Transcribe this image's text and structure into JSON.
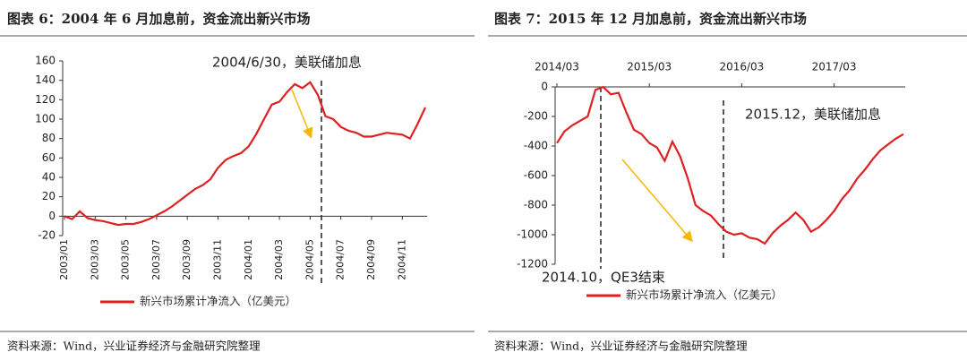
{
  "chart_data": [
    {
      "type": "line",
      "title": "图表 6：2004 年 6 月加息前，资金流出新兴市场",
      "annotation": "2004/6/30，美联储加息",
      "categories": [
        "2003/01",
        null,
        null,
        null,
        "2003/03",
        null,
        null,
        null,
        "2003/05",
        null,
        null,
        null,
        "2003/07",
        null,
        null,
        null,
        "2003/09",
        null,
        null,
        null,
        "2003/11",
        null,
        null,
        null,
        "2004/01",
        null,
        null,
        null,
        "2004/03",
        null,
        null,
        null,
        "2004/05",
        null,
        null,
        null,
        "2004/07",
        null,
        null,
        null,
        "2004/09",
        null,
        null,
        null,
        "2004/11",
        null,
        null,
        null
      ],
      "series": [
        {
          "name": "新兴市场累计净流入（亿美元）",
          "color": "#e02020",
          "values": [
            0,
            -3,
            5,
            -2,
            -4,
            -5,
            -7,
            -9,
            -8,
            -8,
            -6,
            -3,
            1,
            5,
            10,
            16,
            22,
            28,
            32,
            38,
            50,
            58,
            62,
            65,
            72,
            85,
            100,
            115,
            118,
            128,
            136,
            132,
            138,
            125,
            103,
            100,
            92,
            88,
            86,
            82,
            82,
            84,
            86,
            85,
            84,
            80,
            95,
            112
          ]
        }
      ],
      "ylim": [
        -20,
        160
      ],
      "yticks": [
        -20,
        0,
        20,
        40,
        60,
        80,
        100,
        120,
        140,
        160
      ],
      "xaxis": "bottom",
      "source": "资料来源：Wind，兴业证券经济与金融研究院整理"
    },
    {
      "type": "line",
      "title": "图表 7：2015 年 12 月加息前，资金流出新兴市场",
      "annotations": [
        "2015.12，美联储加息",
        "2014.10，QE3结束"
      ],
      "categories": [
        "2014/03",
        null,
        null,
        null,
        null,
        null,
        null,
        null,
        null,
        null,
        null,
        null,
        "2015/03",
        null,
        null,
        null,
        null,
        null,
        null,
        null,
        null,
        null,
        null,
        null,
        "2016/03",
        null,
        null,
        null,
        null,
        null,
        null,
        null,
        null,
        null,
        null,
        null,
        "2017/03",
        null,
        null,
        null,
        null,
        null,
        null,
        null,
        null,
        null
      ],
      "series": [
        {
          "name": "新兴市场累计净流入（亿美元）",
          "color": "#e02020",
          "values": [
            -380,
            -300,
            -260,
            -230,
            -200,
            -20,
            0,
            -50,
            -40,
            -170,
            -290,
            -320,
            -380,
            -410,
            -500,
            -370,
            -470,
            -620,
            -800,
            -840,
            -870,
            -930,
            -980,
            -1000,
            -990,
            -1020,
            -1030,
            -1060,
            -990,
            -940,
            -900,
            -850,
            -900,
            -980,
            -950,
            -900,
            -840,
            -760,
            -700,
            -620,
            -560,
            -490,
            -430,
            -390,
            -350,
            -320
          ]
        }
      ],
      "ylim": [
        -1200,
        0
      ],
      "yticks": [
        -1200,
        -1000,
        -800,
        -600,
        -400,
        -200,
        0
      ],
      "xaxis": "top",
      "source": "资料来源：Wind，兴业证券经济与金融研究院整理"
    }
  ]
}
